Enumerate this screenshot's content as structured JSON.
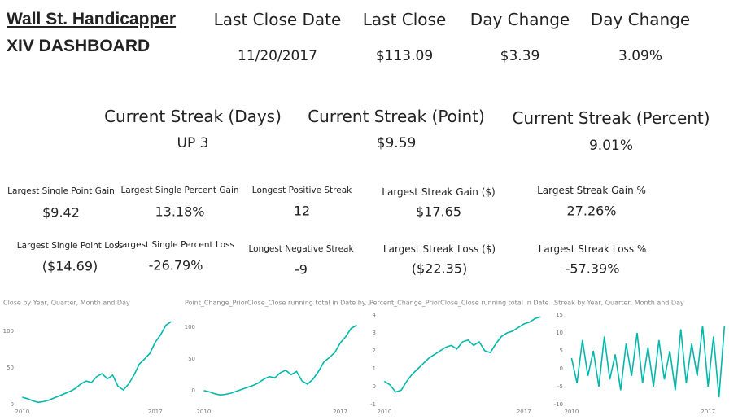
{
  "header": {
    "title": "Wall St. Handicapper",
    "subtitle": "XIV DASHBOARD"
  },
  "kpis": [
    {
      "label": "Last Close Date",
      "value": "11/20/2017"
    },
    {
      "label": "Last Close",
      "value": "$113.09"
    },
    {
      "label": "Day Change",
      "value": "$3.39"
    },
    {
      "label": "Day Change",
      "value": "3.09%"
    }
  ],
  "streaks": [
    {
      "label": "Current Streak (Days)",
      "value": "UP 3"
    },
    {
      "label": "Current Streak (Point)",
      "value": "$9.59"
    },
    {
      "label": "Current Streak (Percent)",
      "value": "9.01%"
    }
  ],
  "stats": [
    {
      "label": "Largest Single Point Gain",
      "value": "$9.42"
    },
    {
      "label": "Largest Single Percent Gain",
      "value": "13.18%"
    },
    {
      "label": "Longest  Positive Streak",
      "value": "12"
    },
    {
      "label": "Largest Streak Gain ($)",
      "value": "$17.65"
    },
    {
      "label": "Largest Streak Gain %",
      "value": "27.26%"
    },
    {
      "label": "Largest Single Point Loss",
      "value": "($14.69)"
    },
    {
      "label": "Largest Single Percent Loss",
      "value": "-26.79%"
    },
    {
      "label": "Longest Negative Streak",
      "value": "-9"
    },
    {
      "label": "Largest Streak Loss ($)",
      "value": "($22.35)"
    },
    {
      "label": "Largest Streak Loss %",
      "value": "-57.39%"
    }
  ],
  "chart_data": [
    {
      "type": "line",
      "title": "Close by Year, Quarter, Month and Day",
      "color": "#01b8aa",
      "x": [
        2010,
        2010.28,
        2010.56,
        2010.84,
        2011.12,
        2011.4,
        2011.68,
        2011.96,
        2012.24,
        2012.52,
        2012.8,
        2013.08,
        2013.36,
        2013.64,
        2013.92,
        2014.2,
        2014.48,
        2014.76,
        2015.04,
        2015.32,
        2015.6,
        2015.88,
        2016.16,
        2016.44,
        2016.72,
        2017,
        2017.28,
        2017.56,
        2017.84
      ],
      "values": [
        10,
        8,
        5,
        3,
        4,
        6,
        9,
        12,
        15,
        18,
        22,
        28,
        32,
        30,
        38,
        42,
        35,
        40,
        25,
        20,
        28,
        40,
        55,
        62,
        70,
        85,
        95,
        108,
        113
      ],
      "xlim": [
        2009.9,
        2017.95
      ],
      "xticks": [
        2010,
        2017
      ],
      "ylim": [
        0,
        122
      ],
      "yticks": [
        0,
        50,
        100
      ]
    },
    {
      "type": "line",
      "title": "Point_Change_PriorClose_Close running total in Date by...",
      "color": "#01b8aa",
      "x": [
        2010,
        2010.28,
        2010.56,
        2010.84,
        2011.12,
        2011.4,
        2011.68,
        2011.96,
        2012.24,
        2012.52,
        2012.8,
        2013.08,
        2013.36,
        2013.64,
        2013.92,
        2014.2,
        2014.48,
        2014.76,
        2015.04,
        2015.32,
        2015.6,
        2015.88,
        2016.16,
        2016.44,
        2016.72,
        2017,
        2017.28,
        2017.56,
        2017.84
      ],
      "values": [
        0,
        -2,
        -5,
        -7,
        -6,
        -4,
        -1,
        2,
        5,
        8,
        12,
        18,
        22,
        20,
        28,
        32,
        25,
        30,
        15,
        10,
        18,
        30,
        45,
        52,
        60,
        75,
        85,
        98,
        103
      ],
      "xlim": [
        2009.9,
        2017.95
      ],
      "xticks": [
        2010,
        2017
      ],
      "ylim": [
        -22,
        119
      ],
      "yticks": [
        0,
        50,
        100
      ]
    },
    {
      "type": "line",
      "title": "Percent_Change_PriorClose_Close running total in Date ...",
      "color": "#01b8aa",
      "x": [
        2010,
        2010.28,
        2010.56,
        2010.84,
        2011.12,
        2011.4,
        2011.68,
        2011.96,
        2012.24,
        2012.52,
        2012.8,
        2013.08,
        2013.36,
        2013.64,
        2013.92,
        2014.2,
        2014.48,
        2014.76,
        2015.04,
        2015.32,
        2015.6,
        2015.88,
        2016.16,
        2016.44,
        2016.72,
        2017,
        2017.28,
        2017.56,
        2017.84
      ],
      "values": [
        0.3,
        0.1,
        -0.3,
        -0.2,
        0.3,
        0.7,
        1.0,
        1.3,
        1.6,
        1.8,
        2.0,
        2.2,
        2.3,
        2.1,
        2.5,
        2.6,
        2.3,
        2.5,
        2.0,
        1.9,
        2.4,
        2.8,
        3.0,
        3.1,
        3.3,
        3.5,
        3.6,
        3.8,
        3.9
      ],
      "xlim": [
        2009.9,
        2017.95
      ],
      "xticks": [
        2010,
        2017
      ],
      "ylim": [
        -1,
        4
      ],
      "yticks": [
        -1,
        0,
        1,
        2,
        3,
        4
      ]
    },
    {
      "type": "line",
      "title": "Streak by Year, Quarter, Month and Day",
      "color": "#01b8aa",
      "x": [
        2010,
        2010.28,
        2010.56,
        2010.84,
        2011.12,
        2011.4,
        2011.68,
        2011.96,
        2012.24,
        2012.52,
        2012.8,
        2013.08,
        2013.36,
        2013.64,
        2013.92,
        2014.2,
        2014.48,
        2014.76,
        2015.04,
        2015.32,
        2015.6,
        2015.88,
        2016.16,
        2016.44,
        2016.72,
        2017,
        2017.28,
        2017.56,
        2017.84
      ],
      "values": [
        3,
        -4,
        8,
        -2,
        5,
        -5,
        9,
        -3,
        4,
        -6,
        7,
        -2,
        10,
        -4,
        6,
        -5,
        8,
        -3,
        5,
        -6,
        11,
        -4,
        7,
        -2,
        12,
        -5,
        9,
        -8,
        12
      ],
      "xlim": [
        2009.9,
        2017.95
      ],
      "xticks": [
        2010,
        2017
      ],
      "ylim": [
        -10,
        15
      ],
      "yticks": [
        -10,
        -5,
        0,
        5,
        10,
        15
      ]
    }
  ]
}
